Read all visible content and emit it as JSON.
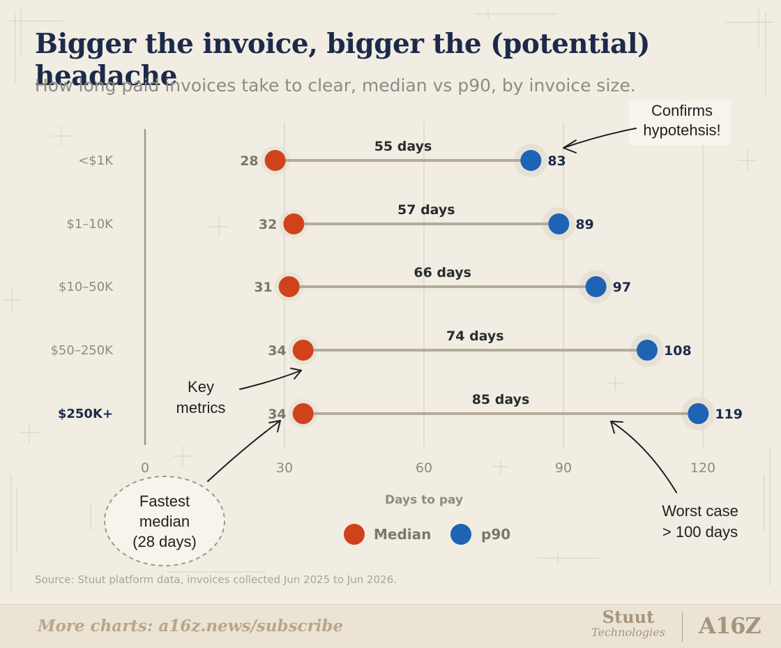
{
  "header": {
    "title": "Bigger the invoice, bigger the (potential) headache",
    "subtitle": "How long paid invoices take to clear, median vs p90, by invoice size."
  },
  "chart_data": {
    "type": "dumbbell",
    "categories": [
      "<$1K",
      "$1–10K",
      "$10–50K",
      "$50–250K",
      "$250K+"
    ],
    "highlighted_category": "$250K+",
    "series": [
      {
        "name": "Median",
        "color": "#d0421b",
        "values": [
          28,
          32,
          31,
          34,
          34
        ]
      },
      {
        "name": "p90",
        "color": "#1f63b4",
        "values": [
          83,
          89,
          97,
          108,
          119
        ]
      }
    ],
    "gap_labels": [
      "55 days",
      "57 days",
      "66 days",
      "74 days",
      "85 days"
    ],
    "xlabel": "Days to pay",
    "ylabel": "",
    "xlim": [
      0,
      120
    ],
    "x_ticks": [
      0,
      30,
      60,
      90,
      120
    ],
    "grid": true,
    "legend_position": "bottom-center",
    "annotations": [
      {
        "id": "confirms",
        "text": "Confirms\nhypotehsis!"
      },
      {
        "id": "key-metrics",
        "text": "Key\nmetrics"
      },
      {
        "id": "fastest",
        "text": "Fastest\nmedian\n(28 days)"
      },
      {
        "id": "worst",
        "text": "Worst case\n> 100 days"
      }
    ]
  },
  "footer": {
    "source": "Source: Stuut platform data, invoices collected Jun 2025 to Jun 2026.",
    "link": "More charts: a16z.news/subscribe",
    "brand_primary": "Stuut",
    "brand_secondary": "Technologies",
    "brand_partner": "A16Z"
  },
  "colors": {
    "background": "#f1ede3",
    "title": "#1c2a4a",
    "median": "#d0421b",
    "p90": "#1f63b4",
    "connector": "#b5ab9b",
    "grid": "#d8d1c3"
  }
}
